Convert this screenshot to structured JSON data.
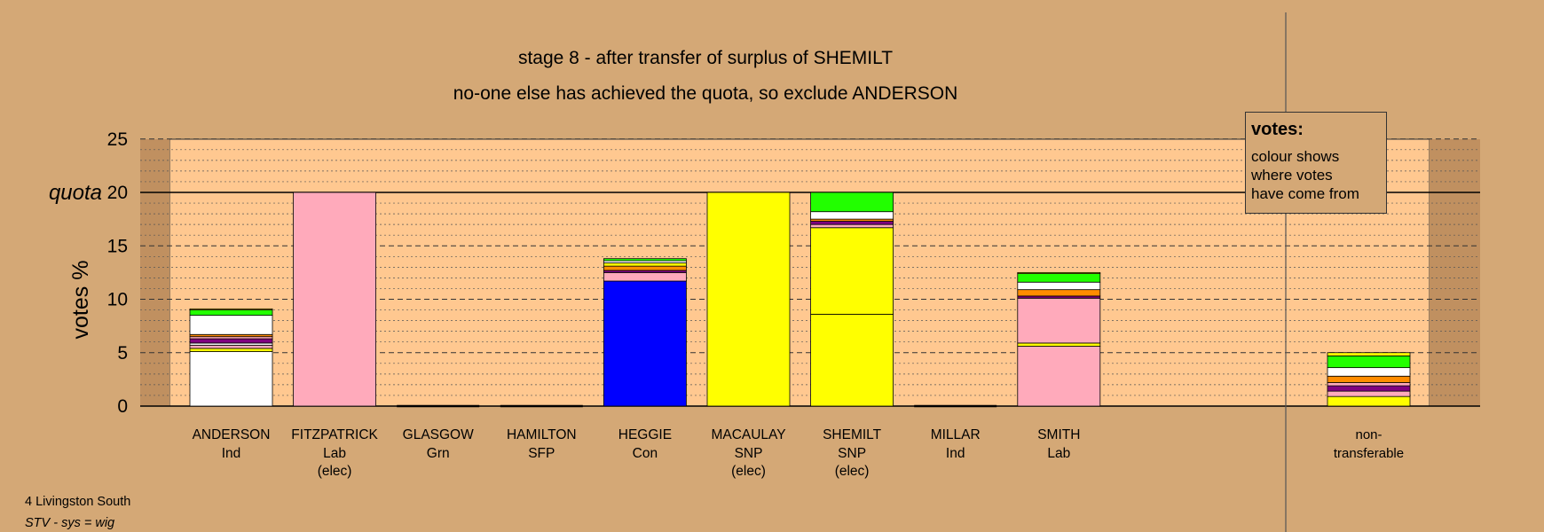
{
  "chart_data": {
    "type": "bar",
    "stacked": true,
    "title": "stage 8 - after transfer of surplus of SHEMILT",
    "subtitle": "no-one else has achieved the quota, so exclude ANDERSON",
    "ylabel": "votes %",
    "quota_label": "quota",
    "quota": 20,
    "ylim": [
      0,
      25
    ],
    "yticks": [
      0,
      5,
      10,
      15,
      20,
      25
    ],
    "grid": true,
    "candidates": [
      {
        "name": "ANDERSON",
        "party": "Ind",
        "note": "",
        "segments": [
          {
            "color": "#ffffff",
            "value": 5.1
          },
          {
            "color": "#ffff00",
            "value": 0.3
          },
          {
            "color": "#ffaabb",
            "value": 0.3
          },
          {
            "color": "#ffffff",
            "value": 0.2
          },
          {
            "color": "#800080",
            "value": 0.4
          },
          {
            "color": "#ffaabb",
            "value": 0.2
          },
          {
            "color": "#ff8c00",
            "value": 0.2
          },
          {
            "color": "#ffffff",
            "value": 1.8
          },
          {
            "color": "#22ff00",
            "value": 0.5
          },
          {
            "color": "#ffff00",
            "value": 0.1
          }
        ]
      },
      {
        "name": "FITZPATRICK",
        "party": "Lab",
        "note": "(elec)",
        "segments": [
          {
            "color": "#ffaabb",
            "value": 20
          }
        ]
      },
      {
        "name": "GLASGOW",
        "party": "Grn",
        "note": "",
        "segments": []
      },
      {
        "name": "HAMILTON",
        "party": "SFP",
        "note": "",
        "segments": []
      },
      {
        "name": "HEGGIE",
        "party": "Con",
        "note": "",
        "segments": [
          {
            "color": "#0000ff",
            "value": 11.7
          },
          {
            "color": "#ffaabb",
            "value": 0.8
          },
          {
            "color": "#800080",
            "value": 0.2
          },
          {
            "color": "#ff8c00",
            "value": 0.4
          },
          {
            "color": "#ffff00",
            "value": 0.3
          },
          {
            "color": "#ffffff",
            "value": 0.2
          },
          {
            "color": "#22ff00",
            "value": 0.2
          }
        ]
      },
      {
        "name": "MACAULAY",
        "party": "SNP",
        "note": "(elec)",
        "segments": [
          {
            "color": "#ffff00",
            "value": 20
          }
        ]
      },
      {
        "name": "SHEMILT",
        "party": "SNP",
        "note": "(elec)",
        "segments": [
          {
            "color": "#ffff00",
            "value": 8.6
          },
          {
            "color": "#ffff00",
            "value": 8.1
          },
          {
            "color": "#ffaabb",
            "value": 0.3
          },
          {
            "color": "#800080",
            "value": 0.3
          },
          {
            "color": "#ff8c00",
            "value": 0.2
          },
          {
            "color": "#ffffff",
            "value": 0.7
          },
          {
            "color": "#22ff00",
            "value": 1.8
          }
        ]
      },
      {
        "name": "MILLAR",
        "party": "Ind",
        "note": "",
        "segments": []
      },
      {
        "name": "SMITH",
        "party": "Lab",
        "note": "",
        "segments": [
          {
            "color": "#ffaabb",
            "value": 5.6
          },
          {
            "color": "#ffff00",
            "value": 0.3
          },
          {
            "color": "#ffaabb",
            "value": 4.2
          },
          {
            "color": "#800080",
            "value": 0.2
          },
          {
            "color": "#ff8c00",
            "value": 0.6
          },
          {
            "color": "#ffffff",
            "value": 0.7
          },
          {
            "color": "#22ff00",
            "value": 0.8
          },
          {
            "color": "#ffff00",
            "value": 0.1
          }
        ]
      }
    ],
    "nontransferable": {
      "label1": "non-",
      "label2": "transferable",
      "segments": [
        {
          "color": "#ffff00",
          "value": 0.9
        },
        {
          "color": "#ffaabb",
          "value": 0.5
        },
        {
          "color": "#800080",
          "value": 0.5
        },
        {
          "color": "#ffaabb",
          "value": 0.3
        },
        {
          "color": "#ff8c00",
          "value": 0.6
        },
        {
          "color": "#ffffff",
          "value": 0.8
        },
        {
          "color": "#22ff00",
          "value": 1.1
        },
        {
          "color": "#ffff00",
          "value": 0.3
        }
      ]
    }
  },
  "legend": {
    "title": "votes:",
    "lines": [
      "colour shows",
      "where votes",
      "have come from"
    ]
  },
  "footer": {
    "line1": "4 Livingston South",
    "line2": "STV - sys = wig"
  }
}
